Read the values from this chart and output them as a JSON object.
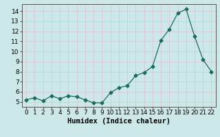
{
  "x": [
    0,
    1,
    2,
    3,
    4,
    5,
    6,
    7,
    8,
    9,
    10,
    11,
    12,
    13,
    14,
    15,
    16,
    17,
    18,
    19,
    20,
    21,
    22
  ],
  "y": [
    5.2,
    5.4,
    5.1,
    5.6,
    5.3,
    5.6,
    5.5,
    5.2,
    4.9,
    4.9,
    5.9,
    6.4,
    6.6,
    7.6,
    7.9,
    8.5,
    11.1,
    12.2,
    13.8,
    14.2,
    11.5,
    9.2,
    8.0
  ],
  "line_color": "#1a6b5a",
  "marker": "D",
  "marker_size": 2.5,
  "bg_color": "#cce8e8",
  "grid_color": "#d8c8d8",
  "xlabel": "Humidex (Indice chaleur)",
  "xlabel_fontsize": 7.5,
  "tick_fontsize": 6.5,
  "ylim": [
    4.5,
    14.7
  ],
  "yticks": [
    5,
    6,
    7,
    8,
    9,
    10,
    11,
    12,
    13,
    14
  ],
  "xlim": [
    -0.5,
    22.5
  ],
  "xticks": [
    0,
    1,
    2,
    3,
    4,
    5,
    6,
    7,
    8,
    9,
    10,
    11,
    12,
    13,
    14,
    15,
    16,
    17,
    18,
    19,
    20,
    21,
    22
  ]
}
